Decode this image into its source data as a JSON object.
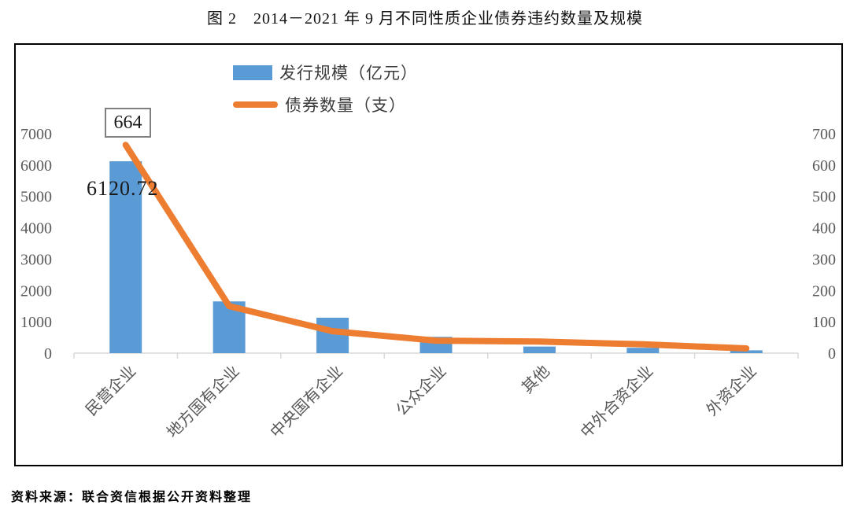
{
  "page": {
    "title": "图 2　2014－2021 年 9 月不同性质企业债券违约数量及规模",
    "source_note": "资料来源：联合资信根据公开资料整理"
  },
  "legend": {
    "items": [
      {
        "label": "发行规模（亿元）",
        "swatch": "bar-swatch"
      },
      {
        "label": "债券数量（支）",
        "swatch": "line-swatch"
      }
    ]
  },
  "annotations": {
    "line_peak_label": "664",
    "bar_peak_label": "6120.72"
  },
  "colors": {
    "bar": "#5B9BD5",
    "line": "#ED7D31",
    "axis_text": "#595959",
    "axis_line": "#D9D9D9",
    "chart_border": "#000000",
    "annotation_border": "#808080"
  },
  "chart_data": {
    "type": "bar",
    "subtype": "combo-bar-line",
    "title": "图 2　2014－2021 年 9 月不同性质企业债券违约数量及规模",
    "categories": [
      "民营企业",
      "地方国有企业",
      "中央国有企业",
      "公众企业",
      "其他",
      "中外合资企业",
      "外资企业"
    ],
    "series": [
      {
        "name": "发行规模（亿元）",
        "type": "bar",
        "axis": "left",
        "color": "#5B9BD5",
        "values": [
          6120.72,
          1650,
          1130,
          520,
          210,
          170,
          90
        ]
      },
      {
        "name": "债券数量（支）",
        "type": "line",
        "axis": "right",
        "color": "#ED7D31",
        "values": [
          664,
          150,
          70,
          40,
          37,
          28,
          15
        ]
      }
    ],
    "left_axis": {
      "min": 0,
      "max": 7000,
      "step": 1000,
      "tick_labels": [
        "0",
        "1000",
        "2000",
        "3000",
        "4000",
        "5000",
        "6000",
        "7000"
      ]
    },
    "right_axis": {
      "min": 0,
      "max": 700,
      "step": 100,
      "tick_labels": [
        "0",
        "100",
        "200",
        "300",
        "400",
        "500",
        "600",
        "700"
      ]
    },
    "grid": false,
    "legend_position": "top-center",
    "data_labels": [
      {
        "series": "发行规模（亿元）",
        "category": "民营企业",
        "text": "6120.72"
      },
      {
        "series": "债券数量（支）",
        "category": "民营企业",
        "text": "664",
        "boxed": true
      }
    ]
  }
}
